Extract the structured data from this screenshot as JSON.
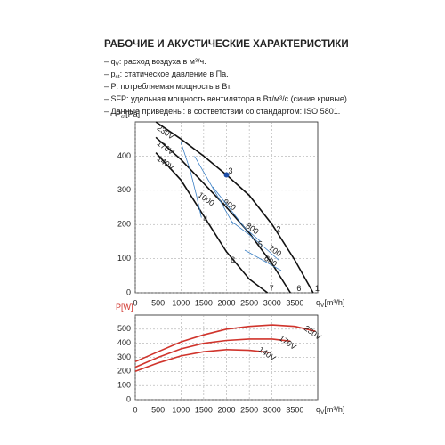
{
  "header": {
    "title": "РАБОЧИЕ И АКУСТИЧЕСКИЕ ХАРАКТЕРИСТИКИ"
  },
  "notes": [
    [
      {
        "text": "– q"
      },
      {
        "sub": "V"
      },
      {
        "text": ": расход воздуха в м³/ч."
      }
    ],
    [
      {
        "text": "– p"
      },
      {
        "sub": "st"
      },
      {
        "text": ": статическое давление в Па."
      }
    ],
    [
      {
        "text": "– P: потребляемая мощность в Вт."
      }
    ],
    [
      {
        "text": "– SFP: удельная мощность вентилятора в Вт/м³/с (синие кривые)."
      }
    ],
    [
      {
        "text": "– Данные приведены: в соответствии со стандартом: ISO 5801."
      }
    ]
  ],
  "chart_data": [
    {
      "type": "line",
      "ylabel": {
        "main": "P",
        "sub": "st",
        "unit": "[Pa]"
      },
      "ylabel_color": "#222",
      "xlabel": {
        "main": "q",
        "sub": "V",
        "unit": "[m³/h]"
      },
      "xlim": [
        0,
        4000
      ],
      "ylim": [
        0,
        500
      ],
      "xticks": [
        0,
        500,
        1000,
        1500,
        2000,
        2500,
        3000,
        3500
      ],
      "yticks": [
        0,
        100,
        200,
        300,
        400
      ],
      "grid": true,
      "series": [
        {
          "name": "230V",
          "color": "#111",
          "x": [
            450,
            1000,
            1500,
            2000,
            2500,
            3000,
            3500,
            3900
          ],
          "values": [
            500,
            450,
            400,
            345,
            285,
            200,
            95,
            0
          ]
        },
        {
          "name": "170V",
          "color": "#111",
          "x": [
            450,
            1000,
            1500,
            2000,
            2500,
            3000,
            3400
          ],
          "values": [
            455,
            390,
            320,
            250,
            175,
            85,
            0
          ]
        },
        {
          "name": "140V",
          "color": "#111",
          "x": [
            450,
            1000,
            1500,
            2000,
            2500,
            2900
          ],
          "values": [
            410,
            330,
            225,
            120,
            40,
            0
          ]
        },
        {
          "name": "1000",
          "color": "#3b7fc4",
          "x": [
            1000,
            1200,
            1350,
            1450
          ],
          "values": [
            440,
            360,
            280,
            220
          ]
        },
        {
          "name": "900",
          "color": "#3b7fc4",
          "x": [
            1300,
            1600,
            1900,
            2150
          ],
          "values": [
            400,
            330,
            260,
            200
          ]
        },
        {
          "name": "800",
          "color": "#3b7fc4",
          "x": [
            1700,
            2050,
            2400,
            2750
          ],
          "values": [
            310,
            250,
            190,
            150
          ]
        },
        {
          "name": "700",
          "color": "#3b7fc4",
          "x": [
            2100,
            2500,
            2900,
            3150
          ],
          "values": [
            210,
            170,
            125,
            95
          ]
        },
        {
          "name": "600",
          "color": "#3b7fc4",
          "x": [
            2400,
            2800,
            3200
          ],
          "values": [
            125,
            95,
            65
          ]
        }
      ],
      "annotations": [
        {
          "text": "1",
          "x": 3900,
          "y": 12
        },
        {
          "text": "2",
          "x": 3050,
          "y": 185
        },
        {
          "text": "3",
          "x": 2000,
          "y": 355
        },
        {
          "text": "4",
          "x": 1450,
          "y": 215
        },
        {
          "text": "5",
          "x": 2650,
          "y": 140
        },
        {
          "text": "6",
          "x": 3500,
          "y": 12
        },
        {
          "text": "7",
          "x": 2900,
          "y": 12
        },
        {
          "text": "8",
          "x": 2050,
          "y": 95
        }
      ],
      "marker": {
        "x": 2000,
        "y": 345,
        "color": "#1f4fa8"
      }
    },
    {
      "type": "line",
      "ylabel": {
        "main": "P",
        "sub": "",
        "unit": "[W]"
      },
      "ylabel_color": "#d0342c",
      "xlabel": {
        "main": "q",
        "sub": "V",
        "unit": "[m³/h]"
      },
      "xlim": [
        0,
        4000
      ],
      "ylim": [
        0,
        600
      ],
      "xticks": [
        0,
        500,
        1000,
        1500,
        2000,
        2500,
        3000,
        3500
      ],
      "yticks": [
        0,
        100,
        200,
        300,
        400,
        500
      ],
      "grid": true,
      "series": [
        {
          "name": "230V",
          "color": "#d0342c",
          "x": [
            0,
            500,
            1000,
            1500,
            2000,
            2500,
            3000,
            3500,
            3950
          ],
          "values": [
            270,
            340,
            410,
            460,
            500,
            520,
            530,
            520,
            485
          ]
        },
        {
          "name": "170V",
          "color": "#d0342c",
          "x": [
            0,
            500,
            1000,
            1500,
            2000,
            2500,
            3000,
            3400
          ],
          "values": [
            230,
            300,
            360,
            400,
            420,
            430,
            430,
            415
          ]
        },
        {
          "name": "140V",
          "color": "#d0342c",
          "x": [
            0,
            500,
            1000,
            1500,
            2000,
            2500,
            2950
          ],
          "values": [
            200,
            260,
            310,
            340,
            355,
            350,
            335
          ]
        }
      ]
    }
  ]
}
